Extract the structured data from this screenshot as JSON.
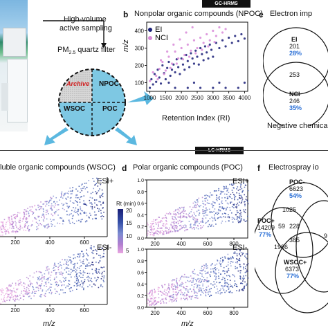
{
  "banners": {
    "gc": "GC-HRMS",
    "lc": "LC-HRMS"
  },
  "panel_a": {
    "sampling_line1": "High-volume",
    "sampling_line2": "active sampling",
    "filter_label_pre": "PM",
    "filter_label_sub": "2.5",
    "filter_label_post": " quartz filter",
    "quadrants": [
      "Archive",
      "NPOC",
      "WSOC",
      "POC"
    ],
    "colors": {
      "archive_bg": "#d8d8d8",
      "fraction_bg": "#7ec8e3",
      "archive_text": "#d01c1c",
      "arrow": "#5bb8e0"
    }
  },
  "panel_b": {
    "letter": "b",
    "title": "Nonpolar organic compounds (NPOC)",
    "ylabel": "m/z",
    "xlabel": "Retention Index (RI)",
    "xticks": [
      "1000",
      "1500",
      "2000",
      "2500",
      "3000",
      "3500",
      "4000"
    ],
    "yticks": [
      "100",
      "200",
      "300",
      "400"
    ],
    "legend": [
      {
        "label": "EI",
        "color": "#1a1f78"
      },
      {
        "label": "NCI",
        "color": "#d889d8"
      }
    ]
  },
  "panel_e": {
    "letter": "e",
    "title": "Electron imp",
    "top_label": "EI",
    "top_count": "201",
    "top_pct": "28%",
    "mid_count": "253",
    "bot_label": "NCI",
    "bot_count": "246",
    "bot_pct": "35%",
    "footer": "Negative chemica"
  },
  "panel_c": {
    "title": "luble organic compounds (WSOC)",
    "mode_top": "ESI+",
    "mode_bottom": "ESI-",
    "xticks": [
      "200",
      "400",
      "600"
    ],
    "xlabel": "m/z"
  },
  "colorbar": {
    "title": "Rt (min)",
    "ticks": [
      "20",
      "15",
      "10",
      "5"
    ],
    "colors": [
      "#1a1f78",
      "#3550a8",
      "#7a8ad0",
      "#b27fd0",
      "#e8a6e0"
    ]
  },
  "panel_d": {
    "letter": "d",
    "title": "Polar organic compounds (POC)",
    "mode_top": "ESI+",
    "mode_bottom": "ESI-",
    "yticks_top": [
      "1.0",
      "0.8",
      "0.6",
      "0.4",
      "0.2",
      "0.0"
    ],
    "yticks_bottom": [
      "1.0",
      "0.8",
      "0.6",
      "0.4",
      "0.2",
      "0.0"
    ],
    "xticks": [
      "200",
      "400",
      "600",
      "800"
    ],
    "xlabel": "m/z"
  },
  "panel_f": {
    "letter": "f",
    "title": "Electrospray io",
    "poc_minus_label": "POC-",
    "poc_minus_count": "6623",
    "poc_minus_pct": "54%",
    "poc_plus_label": "POC+",
    "poc_plus_count": "14209",
    "poc_plus_pct": "77%",
    "wsoc_plus_label": "WSOC+",
    "wsoc_plus_count": "6373",
    "wsoc_plus_pct": "77%",
    "overlap_1025": "1025",
    "overlap_59": "59",
    "overlap_228": "228",
    "overlap_385": "385",
    "overlap_1986": "1986",
    "right_partial": "9",
    "pct_color": "#2a6fd6"
  },
  "chart_data": [
    {
      "type": "scatter",
      "title": "Nonpolar organic compounds (NPOC)",
      "xlabel": "Retention Index (RI)",
      "ylabel": "m/z",
      "xlim": [
        900,
        4100
      ],
      "ylim": [
        50,
        450
      ],
      "series": [
        {
          "name": "EI",
          "color": "#1a1f78",
          "points": [
            [
              1000,
              70
            ],
            [
              1050,
              120
            ],
            [
              1100,
              90
            ],
            [
              1150,
              150
            ],
            [
              1200,
              105
            ],
            [
              1250,
              175
            ],
            [
              1300,
              130
            ],
            [
              1350,
              95
            ],
            [
              1400,
              200
            ],
            [
              1450,
              155
            ],
            [
              1500,
              120
            ],
            [
              1550,
              185
            ],
            [
              1600,
              220
            ],
            [
              1650,
              140
            ],
            [
              1700,
              175
            ],
            [
              1750,
              205
            ],
            [
              1800,
              160
            ],
            [
              1850,
              235
            ],
            [
              1900,
              190
            ],
            [
              1950,
              150
            ],
            [
              2000,
              240
            ],
            [
              2050,
              205
            ],
            [
              2100,
              175
            ],
            [
              2150,
              260
            ],
            [
              2200,
              225
            ],
            [
              2250,
              190
            ],
            [
              2300,
              270
            ],
            [
              2350,
              240
            ],
            [
              2400,
              210
            ],
            [
              2450,
              285
            ],
            [
              2500,
              250
            ],
            [
              2550,
              205
            ],
            [
              2600,
              300
            ],
            [
              2650,
              265
            ],
            [
              2700,
              230
            ],
            [
              2750,
              310
            ],
            [
              2800,
              275
            ],
            [
              2850,
              240
            ],
            [
              2900,
              320
            ],
            [
              2950,
              290
            ],
            [
              3000,
              250
            ],
            [
              3100,
              330
            ],
            [
              3200,
              300
            ],
            [
              3300,
              345
            ],
            [
              3400,
              310
            ],
            [
              3500,
              360
            ],
            [
              3600,
              330
            ],
            [
              3700,
              370
            ],
            [
              3800,
              340
            ],
            [
              3900,
              380
            ],
            [
              4000,
              355
            ],
            [
              1800,
              70
            ],
            [
              2200,
              70
            ],
            [
              2600,
              70
            ],
            [
              3000,
              70
            ],
            [
              3400,
              70
            ],
            [
              3800,
              70
            ],
            [
              1600,
              100
            ],
            [
              2400,
              100
            ],
            [
              3200,
              100
            ],
            [
              4000,
              100
            ]
          ]
        },
        {
          "name": "NCI",
          "color": "#d889d8",
          "points": [
            [
              1000,
              110
            ],
            [
              1100,
              160
            ],
            [
              1200,
              140
            ],
            [
              1300,
              180
            ],
            [
              1400,
              220
            ],
            [
              1500,
              170
            ],
            [
              1600,
              250
            ],
            [
              1700,
              210
            ],
            [
              1800,
              280
            ],
            [
              1900,
              240
            ],
            [
              2000,
              300
            ],
            [
              2100,
              260
            ],
            [
              2200,
              320
            ],
            [
              2300,
              285
            ],
            [
              2400,
              345
            ],
            [
              2500,
              300
            ],
            [
              2600,
              360
            ],
            [
              2700,
              330
            ],
            [
              2800,
              380
            ],
            [
              2900,
              345
            ],
            [
              3000,
              400
            ],
            [
              3100,
              370
            ],
            [
              3200,
              420
            ],
            [
              3300,
              390
            ],
            [
              3400,
              410
            ],
            [
              1250,
              120
            ],
            [
              1450,
              150
            ],
            [
              1650,
              185
            ],
            [
              1850,
              210
            ],
            [
              2050,
              235
            ],
            [
              2250,
              250
            ],
            [
              2450,
              270
            ],
            [
              2650,
              290
            ],
            [
              2850,
              310
            ],
            [
              3050,
              335
            ],
            [
              1350,
              230
            ],
            [
              1550,
              280
            ],
            [
              1750,
              320
            ],
            [
              1950,
              350
            ],
            [
              2150,
              390
            ],
            [
              2350,
              420
            ]
          ]
        }
      ]
    },
    {
      "type": "heatmap",
      "title": "Rt (min)",
      "ylim": [
        5,
        20
      ],
      "ticks": [
        20,
        15,
        10,
        5
      ]
    }
  ]
}
